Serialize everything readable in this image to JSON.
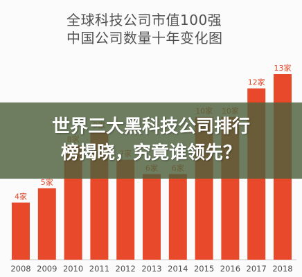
{
  "title": {
    "line1": "全球科技公司市值100强",
    "line2": "中国公司数量十年变化图"
  },
  "overlay": {
    "line1": "世界三大黑科技公司排行",
    "line2": "榜揭晓，究竟谁领先？"
  },
  "colors": {
    "bar": "#e9492b",
    "bar_label": "#e0482a",
    "banner": "#4e603c"
  },
  "chart_data": {
    "type": "bar",
    "title": "全球科技公司市值100强 中国公司数量十年变化图",
    "xlabel": "",
    "ylabel": "",
    "categories": [
      "2008",
      "2009",
      "2010",
      "2011",
      "2012",
      "2013",
      "2014",
      "2015",
      "2016",
      "2017",
      "2018"
    ],
    "values": [
      4,
      5,
      8,
      9,
      7,
      6,
      6,
      10,
      10,
      12,
      13
    ],
    "data_labels": [
      "4家",
      "5家",
      "8家",
      "9家",
      "7家",
      "6家",
      "6家",
      "10家",
      "10家",
      "12家",
      "13家"
    ],
    "ylim": [
      0,
      13
    ],
    "grid": false,
    "legend": "none"
  }
}
